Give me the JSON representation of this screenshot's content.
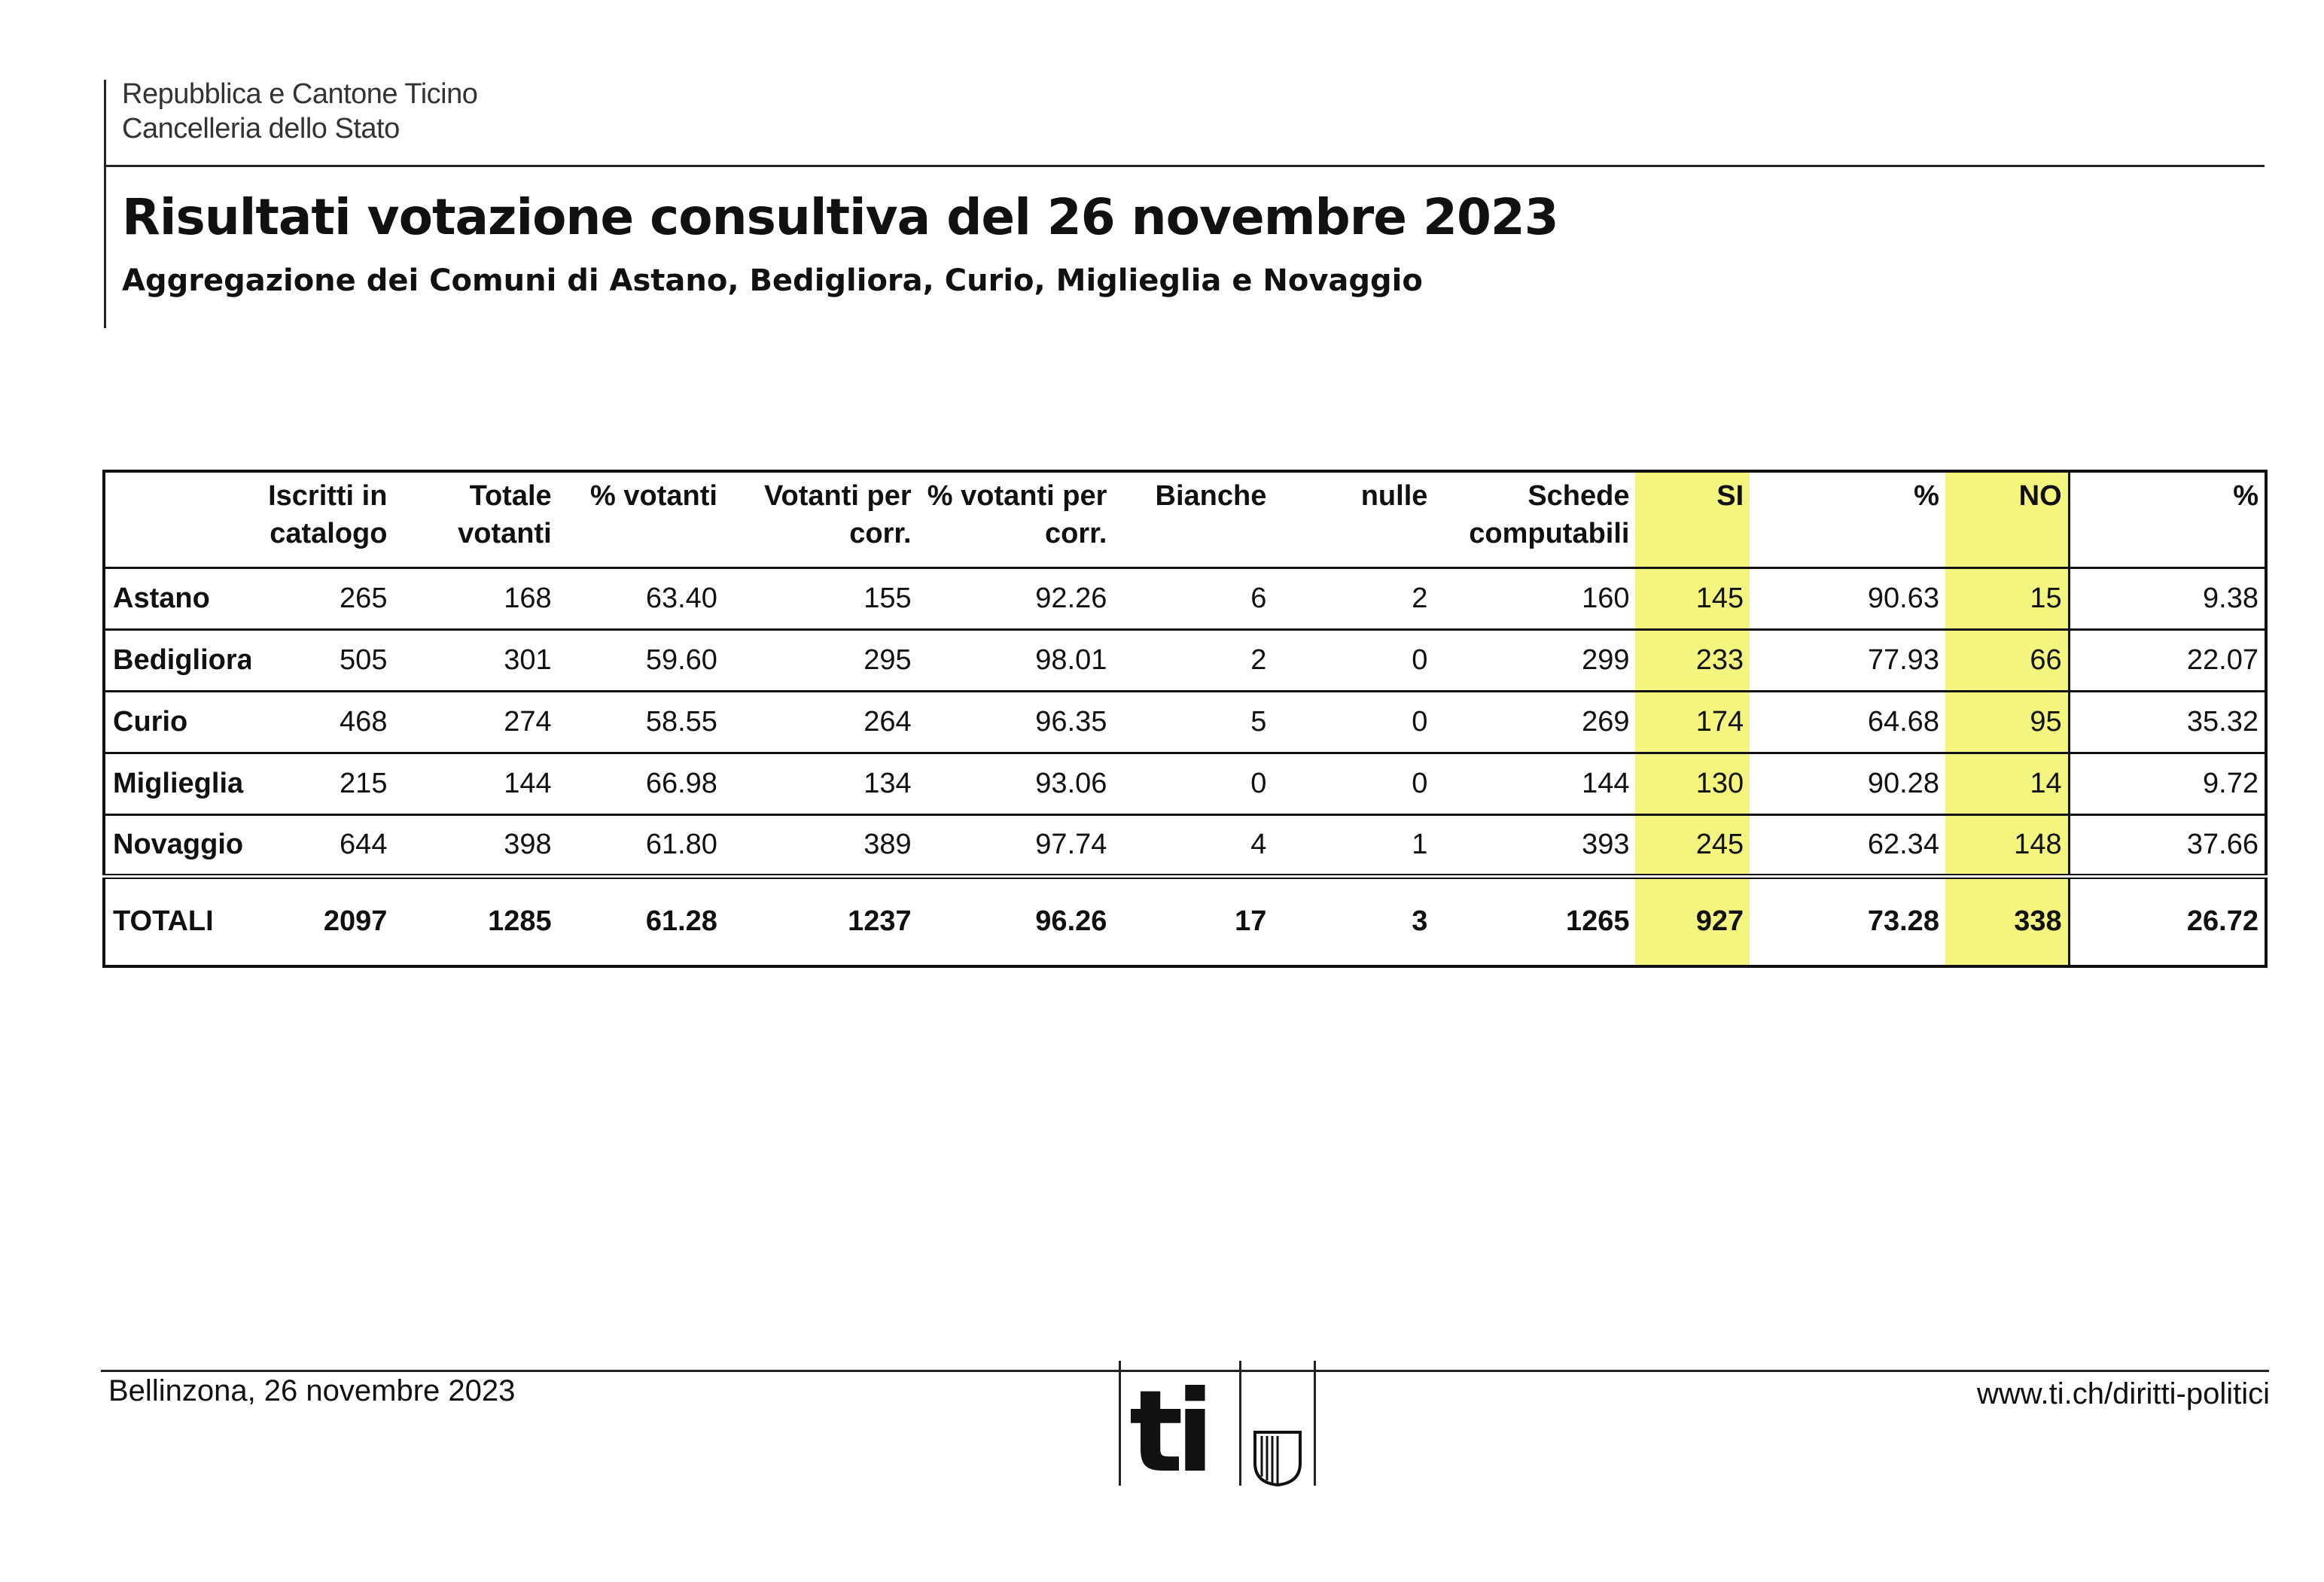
{
  "header": {
    "institution_line1": "Repubblica e Cantone Ticino",
    "institution_line2": "Cancelleria dello Stato",
    "title": "Risultati votazione consultiva del 26 novembre 2023",
    "subtitle": "Aggregazione dei Comuni di Astano, Bedigliora, Curio, Miglieglia e Novaggio"
  },
  "table": {
    "columns": [
      "",
      "Iscritti in catalogo",
      "Totale votanti",
      "% votanti",
      "Votanti per corr.",
      "% votanti per corr.",
      "Bianche",
      "nulle",
      "Schede computabili",
      "SI",
      "%",
      "NO",
      "%"
    ],
    "rows": [
      [
        "Astano",
        "265",
        "168",
        "63.40",
        "155",
        "92.26",
        "6",
        "2",
        "160",
        "145",
        "90.63",
        "15",
        "9.38"
      ],
      [
        "Bedigliora",
        "505",
        "301",
        "59.60",
        "295",
        "98.01",
        "2",
        "0",
        "299",
        "233",
        "77.93",
        "66",
        "22.07"
      ],
      [
        "Curio",
        "468",
        "274",
        "58.55",
        "264",
        "96.35",
        "5",
        "0",
        "269",
        "174",
        "64.68",
        "95",
        "35.32"
      ],
      [
        "Miglieglia",
        "215",
        "144",
        "66.98",
        "134",
        "93.06",
        "0",
        "0",
        "144",
        "130",
        "90.28",
        "14",
        "9.72"
      ],
      [
        "Novaggio",
        "644",
        "398",
        "61.80",
        "389",
        "97.74",
        "4",
        "1",
        "393",
        "245",
        "62.34",
        "148",
        "37.66"
      ]
    ],
    "totals": [
      "TOTALI",
      "2097",
      "1285",
      "61.28",
      "1237",
      "96.26",
      "17",
      "3",
      "1265",
      "927",
      "73.28",
      "338",
      "26.72"
    ],
    "highlight_color": "#f3f57e"
  },
  "footer": {
    "place_date": "Bellinzona, 26 novembre 2023",
    "logo_text": "ti",
    "logo_icon": "ticino-shield-icon",
    "website": "www.ti.ch/diritti-politici"
  }
}
